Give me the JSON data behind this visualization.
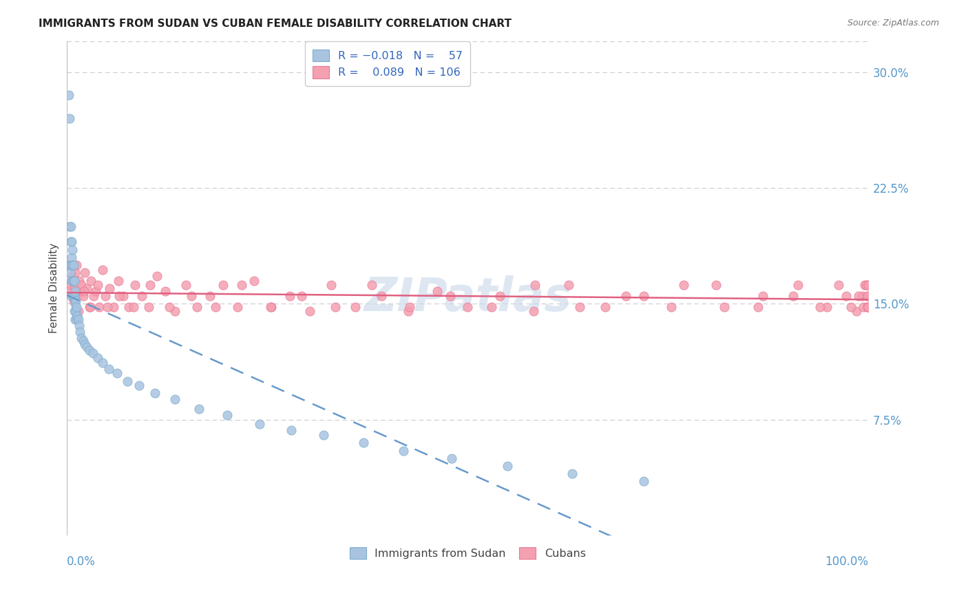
{
  "title": "IMMIGRANTS FROM SUDAN VS CUBAN FEMALE DISABILITY CORRELATION CHART",
  "source": "Source: ZipAtlas.com",
  "ylabel": "Female Disability",
  "ytick_labels": [
    "7.5%",
    "15.0%",
    "22.5%",
    "30.0%"
  ],
  "ytick_vals": [
    0.075,
    0.15,
    0.225,
    0.3
  ],
  "color_blue": "#a8c4e0",
  "color_pink": "#f4a0b0",
  "color_blue_border": "#7aabcc",
  "color_pink_border": "#e87898",
  "color_blue_line": "#6699cc",
  "color_pink_line": "#e06080",
  "watermark_color": "#c8d8e8",
  "sudan_x": [
    0.002,
    0.003,
    0.003,
    0.004,
    0.004,
    0.005,
    0.005,
    0.005,
    0.006,
    0.006,
    0.006,
    0.006,
    0.007,
    0.007,
    0.007,
    0.008,
    0.008,
    0.008,
    0.009,
    0.009,
    0.009,
    0.01,
    0.01,
    0.01,
    0.011,
    0.011,
    0.012,
    0.012,
    0.013,
    0.014,
    0.015,
    0.016,
    0.018,
    0.02,
    0.022,
    0.025,
    0.028,
    0.032,
    0.038,
    0.044,
    0.052,
    0.062,
    0.075,
    0.09,
    0.11,
    0.135,
    0.165,
    0.2,
    0.24,
    0.28,
    0.32,
    0.37,
    0.42,
    0.48,
    0.55,
    0.63,
    0.72
  ],
  "sudan_y": [
    0.285,
    0.27,
    0.2,
    0.175,
    0.17,
    0.2,
    0.19,
    0.175,
    0.19,
    0.18,
    0.165,
    0.155,
    0.185,
    0.175,
    0.165,
    0.175,
    0.165,
    0.155,
    0.165,
    0.155,
    0.145,
    0.158,
    0.15,
    0.14,
    0.152,
    0.145,
    0.148,
    0.14,
    0.142,
    0.14,
    0.136,
    0.132,
    0.128,
    0.126,
    0.124,
    0.122,
    0.12,
    0.118,
    0.115,
    0.112,
    0.108,
    0.105,
    0.1,
    0.097,
    0.092,
    0.088,
    0.082,
    0.078,
    0.072,
    0.068,
    0.065,
    0.06,
    0.055,
    0.05,
    0.045,
    0.04,
    0.035
  ],
  "cuban_x": [
    0.002,
    0.003,
    0.005,
    0.006,
    0.007,
    0.008,
    0.009,
    0.01,
    0.012,
    0.013,
    0.015,
    0.016,
    0.018,
    0.02,
    0.022,
    0.025,
    0.028,
    0.03,
    0.033,
    0.036,
    0.04,
    0.044,
    0.048,
    0.053,
    0.058,
    0.064,
    0.07,
    0.077,
    0.085,
    0.093,
    0.102,
    0.112,
    0.123,
    0.135,
    0.148,
    0.162,
    0.178,
    0.195,
    0.213,
    0.233,
    0.255,
    0.278,
    0.303,
    0.33,
    0.36,
    0.392,
    0.426,
    0.462,
    0.5,
    0.54,
    0.582,
    0.626,
    0.672,
    0.72,
    0.77,
    0.82,
    0.868,
    0.912,
    0.948,
    0.972,
    0.985,
    0.992,
    0.996,
    0.998,
    0.999,
    0.9995,
    0.014,
    0.021,
    0.029,
    0.038,
    0.05,
    0.065,
    0.083,
    0.104,
    0.128,
    0.155,
    0.185,
    0.218,
    0.254,
    0.293,
    0.335,
    0.38,
    0.428,
    0.478,
    0.53,
    0.584,
    0.64,
    0.697,
    0.754,
    0.81,
    0.862,
    0.906,
    0.94,
    0.963,
    0.978,
    0.988,
    0.994,
    0.997,
    0.999,
    0.9993,
    0.9996,
    0.9998
  ],
  "cuban_y": [
    0.175,
    0.158,
    0.162,
    0.155,
    0.168,
    0.152,
    0.162,
    0.17,
    0.175,
    0.155,
    0.165,
    0.158,
    0.162,
    0.155,
    0.17,
    0.16,
    0.148,
    0.165,
    0.155,
    0.158,
    0.148,
    0.172,
    0.155,
    0.16,
    0.148,
    0.165,
    0.155,
    0.148,
    0.162,
    0.155,
    0.148,
    0.168,
    0.158,
    0.145,
    0.162,
    0.148,
    0.155,
    0.162,
    0.148,
    0.165,
    0.148,
    0.155,
    0.145,
    0.162,
    0.148,
    0.155,
    0.145,
    0.158,
    0.148,
    0.155,
    0.145,
    0.162,
    0.148,
    0.155,
    0.162,
    0.148,
    0.155,
    0.162,
    0.148,
    0.155,
    0.145,
    0.155,
    0.162,
    0.148,
    0.155,
    0.162,
    0.145,
    0.158,
    0.148,
    0.162,
    0.148,
    0.155,
    0.148,
    0.162,
    0.148,
    0.155,
    0.148,
    0.162,
    0.148,
    0.155,
    0.148,
    0.162,
    0.148,
    0.155,
    0.148,
    0.162,
    0.148,
    0.155,
    0.148,
    0.162,
    0.148,
    0.155,
    0.148,
    0.162,
    0.148,
    0.155,
    0.148,
    0.162,
    0.148,
    0.155,
    0.148,
    0.162
  ]
}
